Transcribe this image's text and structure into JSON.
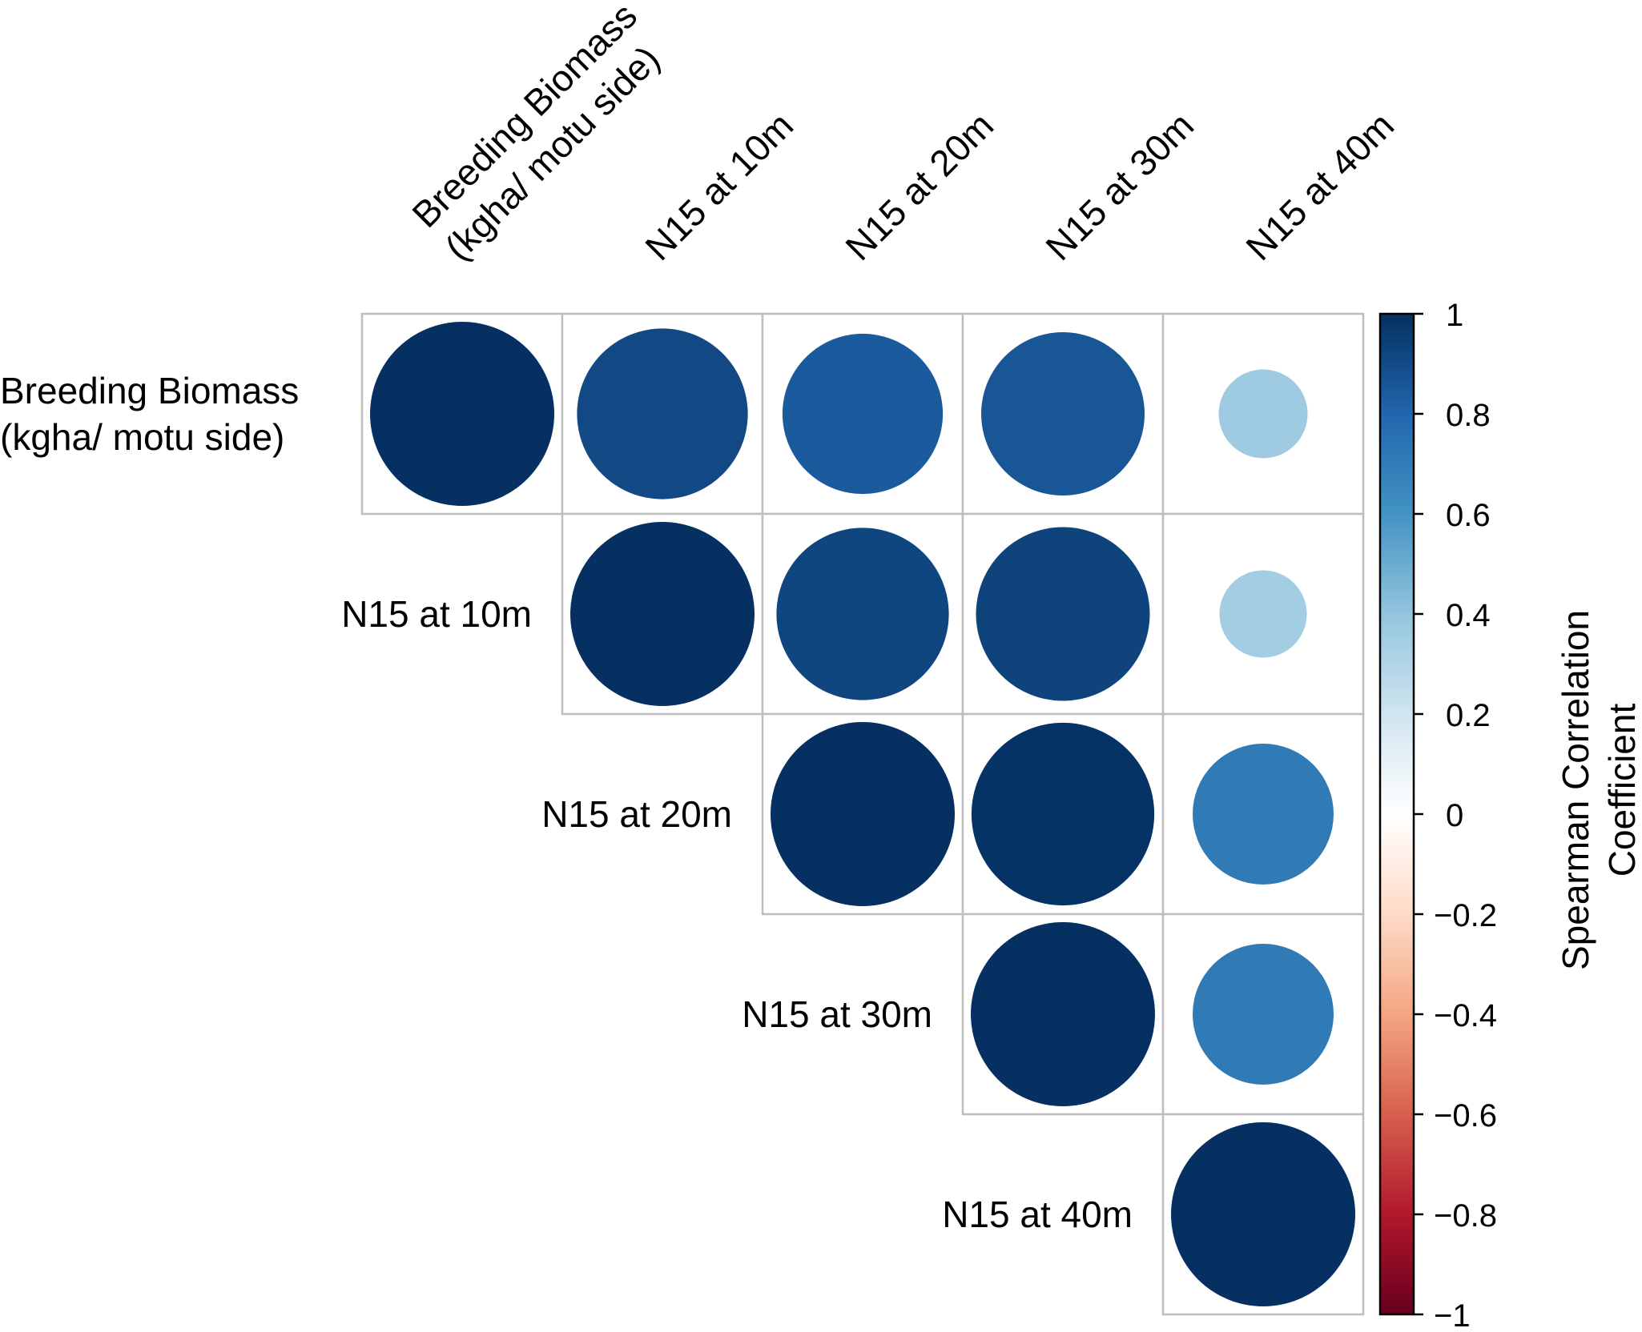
{
  "chart_data": {
    "type": "heatmap",
    "subtype": "correlation-upper-triangle-circles",
    "variables": [
      {
        "lines": [
          "Breeding Biomass",
          "(kgha/ motu side)"
        ]
      },
      {
        "lines": [
          "N15 at 10m"
        ]
      },
      {
        "lines": [
          "N15 at 20m"
        ]
      },
      {
        "lines": [
          "N15 at 30m"
        ]
      },
      {
        "lines": [
          "N15 at 40m"
        ]
      }
    ],
    "matrix": [
      [
        1.0,
        0.91,
        0.84,
        0.86,
        0.36
      ],
      [
        0.91,
        1.0,
        0.92,
        0.93,
        0.35
      ],
      [
        0.84,
        0.92,
        1.0,
        0.99,
        0.71
      ],
      [
        0.86,
        0.93,
        0.99,
        1.0,
        0.71
      ],
      [
        0.36,
        0.35,
        0.71,
        0.71,
        1.0
      ]
    ],
    "color_scale": {
      "title_lines": [
        "Spearman Correlation",
        "Coefficient"
      ],
      "min": -1,
      "max": 1,
      "ticks": [
        "1",
        "0.8",
        "0.6",
        "0.4",
        "0.2",
        "0",
        "−0.2",
        "−0.4",
        "−0.6",
        "−0.8",
        "−1"
      ],
      "stops": [
        "#67001F",
        "#B2182B",
        "#D6604D",
        "#F4A582",
        "#FDDBC7",
        "#FFFFFF",
        "#D1E5F0",
        "#92C5DE",
        "#4393C3",
        "#2166AC",
        "#053061"
      ]
    },
    "grid": true,
    "legend_position": "right"
  }
}
